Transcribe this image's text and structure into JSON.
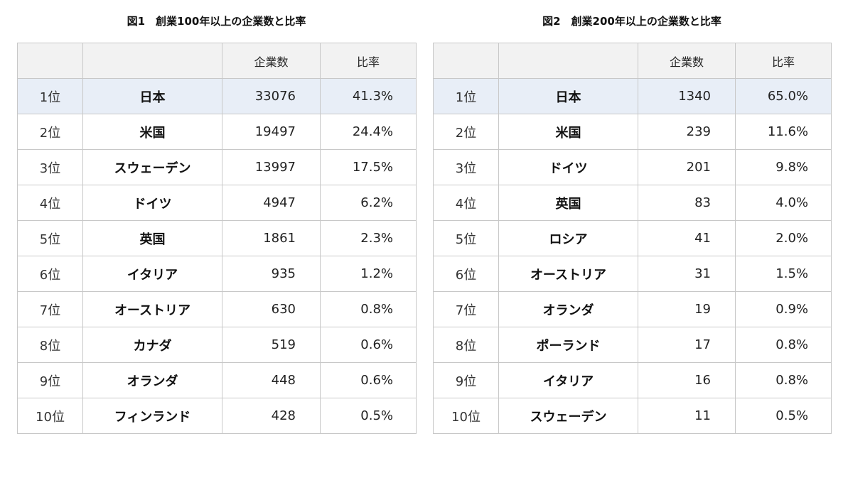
{
  "tables": [
    {
      "caption": "図1　創業100年以上の企業数と比率",
      "headers": [
        "",
        "",
        "企業数",
        "比率"
      ],
      "rows": [
        {
          "rank": "1位",
          "country": "日本",
          "count": "33076",
          "ratio": "41.3%"
        },
        {
          "rank": "2位",
          "country": "米国",
          "count": "19497",
          "ratio": "24.4%"
        },
        {
          "rank": "3位",
          "country": "スウェーデン",
          "count": "13997",
          "ratio": "17.5%"
        },
        {
          "rank": "4位",
          "country": "ドイツ",
          "count": "4947",
          "ratio": "6.2%"
        },
        {
          "rank": "5位",
          "country": "英国",
          "count": "1861",
          "ratio": "2.3%"
        },
        {
          "rank": "6位",
          "country": "イタリア",
          "count": "935",
          "ratio": "1.2%"
        },
        {
          "rank": "7位",
          "country": "オーストリア",
          "count": "630",
          "ratio": "0.8%"
        },
        {
          "rank": "8位",
          "country": "カナダ",
          "count": "519",
          "ratio": "0.6%"
        },
        {
          "rank": "9位",
          "country": "オランダ",
          "count": "448",
          "ratio": "0.6%"
        },
        {
          "rank": "10位",
          "country": "フィンランド",
          "count": "428",
          "ratio": "0.5%"
        }
      ]
    },
    {
      "caption": "図2　創業200年以上の企業数と比率",
      "headers": [
        "",
        "",
        "企業数",
        "比率"
      ],
      "rows": [
        {
          "rank": "1位",
          "country": "日本",
          "count": "1340",
          "ratio": "65.0%"
        },
        {
          "rank": "2位",
          "country": "米国",
          "count": "239",
          "ratio": "11.6%"
        },
        {
          "rank": "3位",
          "country": "ドイツ",
          "count": "201",
          "ratio": "9.8%"
        },
        {
          "rank": "4位",
          "country": "英国",
          "count": "83",
          "ratio": "4.0%"
        },
        {
          "rank": "5位",
          "country": "ロシア",
          "count": "41",
          "ratio": "2.0%"
        },
        {
          "rank": "6位",
          "country": "オーストリア",
          "count": "31",
          "ratio": "1.5%"
        },
        {
          "rank": "7位",
          "country": "オランダ",
          "count": "19",
          "ratio": "0.9%"
        },
        {
          "rank": "8位",
          "country": "ポーランド",
          "count": "17",
          "ratio": "0.8%"
        },
        {
          "rank": "9位",
          "country": "イタリア",
          "count": "16",
          "ratio": "0.8%"
        },
        {
          "rank": "10位",
          "country": "スウェーデン",
          "count": "11",
          "ratio": "0.5%"
        }
      ]
    }
  ],
  "colors": {
    "header_bg": "#f2f2f2",
    "highlight_row_bg": "#e8eef7",
    "border": "#c8c8c8"
  }
}
